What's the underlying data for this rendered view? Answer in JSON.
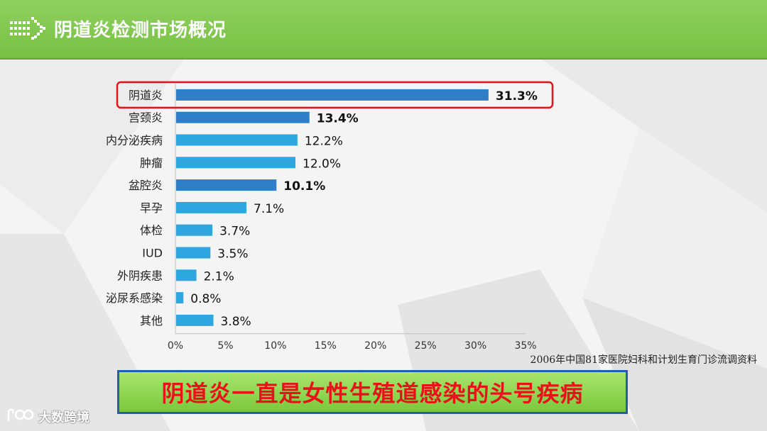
{
  "header": {
    "title": "阴道炎检测市场概况",
    "icon": "arrow-right-icon"
  },
  "chart_data": {
    "type": "bar",
    "orientation": "horizontal",
    "categories": [
      "阴道炎",
      "宫颈炎",
      "内分泌疾病",
      "肿瘤",
      "盆腔炎",
      "早孕",
      "体检",
      "IUD",
      "外阴疾患",
      "泌尿系感染",
      "其他"
    ],
    "values": [
      31.3,
      13.4,
      12.2,
      12.0,
      10.1,
      7.1,
      3.7,
      3.5,
      2.1,
      0.8,
      3.8
    ],
    "value_labels": [
      "31.3%",
      "13.4%",
      "12.2%",
      "12.0%",
      "10.1%",
      "7.1%",
      "3.7%",
      "3.5%",
      "2.1%",
      "0.8%",
      "3.8%"
    ],
    "bold_labels": [
      true,
      true,
      false,
      false,
      true,
      false,
      false,
      false,
      false,
      false,
      false
    ],
    "dark_bars": [
      true,
      true,
      false,
      false,
      true,
      false,
      false,
      false,
      false,
      false,
      false
    ],
    "highlighted_category": "阴道炎",
    "x_ticks": [
      "0%",
      "5%",
      "10%",
      "15%",
      "20%",
      "25%",
      "30%",
      "35%"
    ],
    "xlim": [
      0,
      35
    ],
    "grid": false,
    "colors": {
      "dark_bar": "#2f7fc8",
      "light_bar": "#2ea6e0",
      "highlight_box": "#e8121b"
    }
  },
  "source_note": "2006年中国81家医院妇科和计划生育门诊流调资料",
  "banner": {
    "text": "阴道炎一直是女性生殖道感染的头号疾病"
  },
  "watermark": {
    "text": "大数跨境",
    "icon": "logo-icon"
  }
}
